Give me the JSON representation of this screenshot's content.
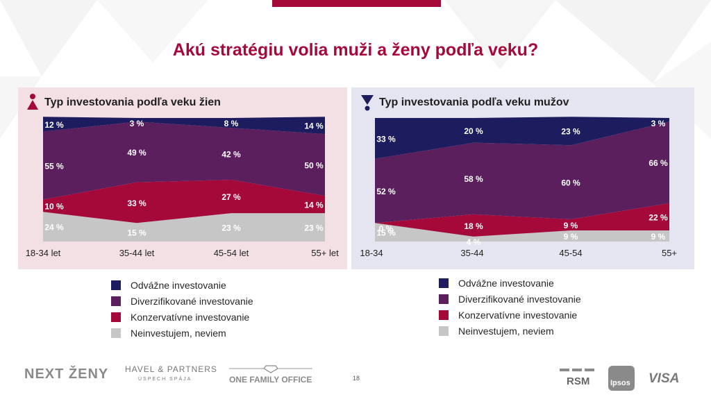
{
  "title": "Akú stratégiu volia muži a ženy podľa veku?",
  "colors": {
    "odvazne": "#1c1c5e",
    "diverz": "#5b1f5e",
    "konz": "#a5093a",
    "nein": "#c6c6c6",
    "accent": "#a5093a"
  },
  "panels": {
    "women": {
      "title": "Typ investovania podľa veku žien",
      "icon": "woman-icon"
    },
    "men": {
      "title": "Typ investovania podľa veku mužov",
      "icon": "man-icon"
    }
  },
  "chart_data": [
    {
      "type": "area",
      "stacked": true,
      "title": "Typ investovania podľa veku žien",
      "categories": [
        "18-34 let",
        "35-44 let",
        "45-54 let",
        "55+ let"
      ],
      "ylim": [
        0,
        100
      ],
      "series": [
        {
          "name": "Neinvestujem, neviem",
          "values": [
            24,
            15,
            23,
            23
          ],
          "labels": [
            "24 %",
            "15 %",
            "23 %",
            "23 %"
          ]
        },
        {
          "name": "Konzervatívne investovanie",
          "values": [
            10,
            33,
            27,
            14
          ],
          "labels": [
            "10 %",
            "33 %",
            "27 %",
            "14 %"
          ]
        },
        {
          "name": "Diverzifikované investovanie",
          "values": [
            55,
            49,
            42,
            50
          ],
          "labels": [
            "55 %",
            "49 %",
            "42 %",
            "50 %"
          ]
        },
        {
          "name": "Odvážne investovanie",
          "values": [
            12,
            3,
            8,
            14
          ],
          "labels": [
            "12 %",
            "3 %",
            "8 %",
            "14 %"
          ]
        }
      ]
    },
    {
      "type": "area",
      "stacked": true,
      "title": "Typ investovania podľa veku mužov",
      "categories": [
        "18-34",
        "35-44",
        "45-54",
        "55+"
      ],
      "ylim": [
        0,
        100
      ],
      "series": [
        {
          "name": "Neinvestujem, neviem",
          "values": [
            15,
            4,
            9,
            9
          ],
          "labels": [
            "15 %",
            "4 %",
            "9 %",
            "9 %"
          ]
        },
        {
          "name": "Konzervatívne investovanie",
          "values": [
            0,
            18,
            9,
            22
          ],
          "labels": [
            "0 %",
            "18 %",
            "9 %",
            "22 %"
          ]
        },
        {
          "name": "Diverzifikované investovanie",
          "values": [
            52,
            58,
            60,
            66
          ],
          "labels": [
            "52 %",
            "58 %",
            "60 %",
            "66 %"
          ]
        },
        {
          "name": "Odvážne investovanie",
          "values": [
            33,
            20,
            23,
            3
          ],
          "labels": [
            "33 %",
            "20 %",
            "23 %",
            "3 %"
          ]
        }
      ]
    }
  ],
  "legend": [
    {
      "label": "Odvážne investovanie",
      "color": "#1c1c5e"
    },
    {
      "label": "Diverzifikované investovanie",
      "color": "#5b1f5e"
    },
    {
      "label": "Konzervatívne investovanie",
      "color": "#a5093a"
    },
    {
      "label": "Neinvestujem, neviem",
      "color": "#c6c6c6"
    }
  ],
  "footer": {
    "next_zeny": "NEXT ŽENY",
    "havel_line1": "HAVEL & PARTNERS",
    "havel_line2": "ÚSPECH SPÁJA",
    "family_office": "ONE FAMILY OFFICE",
    "page": "18",
    "rsm": "RSM",
    "ipsos": "Ipsos",
    "visa": "VISA"
  }
}
